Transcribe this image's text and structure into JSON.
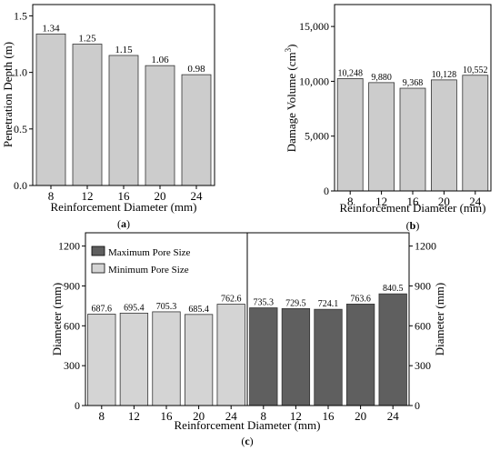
{
  "chart_data": [
    {
      "type": "bar",
      "panel_label": "(a)",
      "categories": [
        "8",
        "12",
        "16",
        "20",
        "24"
      ],
      "values": [
        1.34,
        1.25,
        1.15,
        1.06,
        0.98
      ],
      "data_labels": [
        "1.34",
        "1.25",
        "1.15",
        "1.06",
        "0.98"
      ],
      "xlabel": "Reinforcement Diameter (mm)",
      "ylabel": "Penetration Depth (m)",
      "ylim": [
        0,
        1.6
      ],
      "yticks": [
        0.0,
        0.5,
        1.0,
        1.5
      ],
      "ytick_labels": [
        "0.0",
        "0.5",
        "1.0",
        "1.5"
      ],
      "bar_color": "#cccccc",
      "grid": false
    },
    {
      "type": "bar",
      "panel_label": "(b)",
      "categories": [
        "8",
        "12",
        "16",
        "20",
        "24"
      ],
      "values": [
        10248,
        9880,
        9368,
        10128,
        10552
      ],
      "data_labels": [
        "10,248",
        "9,880",
        "9,368",
        "10,128",
        "10,552"
      ],
      "xlabel": "Reinforcement Diameter (mm)",
      "ylabel_main": "Damage Volume (cm",
      "ylabel_sup": "3",
      "ylabel_end": ")",
      "ylim": [
        0,
        17000
      ],
      "yticks": [
        0,
        5000,
        10000,
        15000
      ],
      "ytick_labels": [
        "0",
        "5,000",
        "10,000",
        "15,000"
      ],
      "bar_color": "#cccccc",
      "grid": false
    },
    {
      "type": "bar",
      "panel_label": "(c)",
      "xlabel": "Reinforcement Diameter (mm)",
      "ylabel_left": "Diameter (mm)",
      "ylabel_right": "Diameter (mm)",
      "ylim": [
        0,
        1300
      ],
      "yticks": [
        0,
        300,
        600,
        900,
        1200
      ],
      "ytick_labels": [
        "0",
        "300",
        "600",
        "900",
        "1200"
      ],
      "legend_position": "top-left",
      "grid": false,
      "series": [
        {
          "name": "Minimum Pore Size",
          "color": "#d4d4d4",
          "categories": [
            "8",
            "12",
            "16",
            "20",
            "24"
          ],
          "values": [
            687.6,
            695.4,
            705.3,
            685.4,
            762.6
          ],
          "data_labels": [
            "687.6",
            "695.4",
            "705.3",
            "685.4",
            "762.6"
          ]
        },
        {
          "name": "Maximum Pore Size",
          "color": "#5f5f5f",
          "categories": [
            "8",
            "12",
            "16",
            "20",
            "24"
          ],
          "values": [
            735.3,
            729.5,
            724.1,
            763.6,
            840.5
          ],
          "data_labels": [
            "735.3",
            "729.5",
            "724.1",
            "763.6",
            "840.5"
          ]
        }
      ],
      "legend": [
        "Maximum Pore Size",
        "Minimum Pore Size"
      ]
    }
  ]
}
